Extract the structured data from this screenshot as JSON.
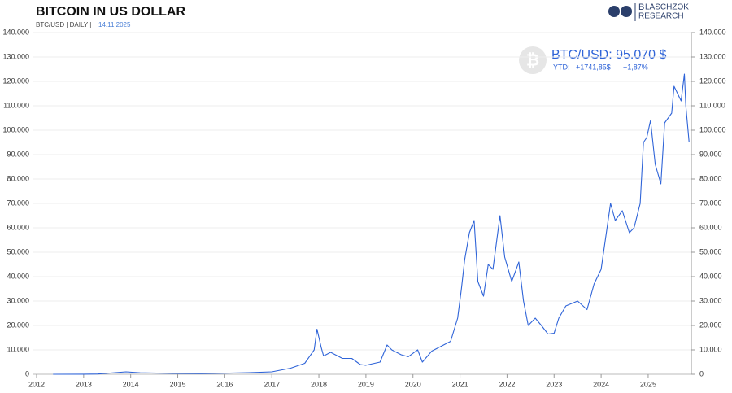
{
  "chart_data": {
    "type": "line",
    "title": "BITCOIN IN US DOLLAR",
    "subtitle": "BTC/USD | DAILY |",
    "date": "14.11.2025",
    "logo": {
      "initial": "B",
      "line1": "LASCHZOK",
      "line2": "RESEARCH"
    },
    "annotation": {
      "price": "BTC/USD: 95.070 $",
      "ytd_label": "YTD:",
      "ytd_abs": "+1741,85$",
      "ytd_pct": "+1,87%"
    },
    "x": [
      2012.35,
      2013.0,
      2013.3,
      2013.9,
      2014.2,
      2014.9,
      2015.5,
      2016.0,
      2016.5,
      2017.0,
      2017.4,
      2017.7,
      2017.9,
      2017.96,
      2018.05,
      2018.1,
      2018.25,
      2018.5,
      2018.7,
      2018.88,
      2019.0,
      2019.3,
      2019.45,
      2019.55,
      2019.75,
      2019.9,
      2020.1,
      2020.2,
      2020.4,
      2020.6,
      2020.8,
      2020.95,
      2021.03,
      2021.1,
      2021.2,
      2021.3,
      2021.38,
      2021.5,
      2021.6,
      2021.7,
      2021.85,
      2021.95,
      2022.1,
      2022.25,
      2022.35,
      2022.45,
      2022.6,
      2022.75,
      2022.87,
      2023.0,
      2023.1,
      2023.25,
      2023.5,
      2023.7,
      2023.85,
      2024.0,
      2024.2,
      2024.3,
      2024.45,
      2024.6,
      2024.7,
      2024.83,
      2024.9,
      2024.97,
      2025.05,
      2025.15,
      2025.27,
      2025.35,
      2025.5,
      2025.55,
      2025.7,
      2025.77,
      2025.8,
      2025.87
    ],
    "series": [
      {
        "name": "BTC/USD",
        "color": "#2f64d8",
        "values": [
          5,
          13,
          100,
          1000,
          600,
          350,
          250,
          430,
          650,
          1000,
          2500,
          4500,
          10000,
          18500,
          11000,
          7500,
          9000,
          6500,
          6500,
          4000,
          3700,
          5000,
          12000,
          10000,
          8000,
          7200,
          10000,
          5000,
          9500,
          11500,
          13500,
          23000,
          35000,
          47000,
          58000,
          63000,
          38000,
          32000,
          45000,
          43000,
          65000,
          48000,
          38000,
          46000,
          30000,
          20000,
          23000,
          19500,
          16500,
          16800,
          23000,
          28000,
          30000,
          26500,
          37000,
          43000,
          70000,
          63000,
          67000,
          58000,
          60000,
          70000,
          95000,
          97000,
          104000,
          86000,
          78000,
          103000,
          107000,
          118000,
          112000,
          123000,
          110000,
          95070
        ]
      }
    ],
    "xlim": [
      2012,
      2025.9
    ],
    "xticks": [
      2012,
      2013,
      2014,
      2015,
      2016,
      2017,
      2018,
      2019,
      2020,
      2021,
      2022,
      2023,
      2024,
      2025
    ],
    "ylim": [
      0,
      140000
    ],
    "yticks": [
      0,
      {
        "value": 10000,
        "label": "10.000"
      },
      {
        "value": 20000,
        "label": "20.000"
      },
      {
        "value": 30000,
        "label": "30.000"
      },
      {
        "value": 40000,
        "label": "40.000"
      },
      {
        "value": 50000,
        "label": "50.000"
      },
      {
        "value": 60000,
        "label": "60.000"
      },
      {
        "value": 70000,
        "label": "70.000"
      },
      {
        "value": 80000,
        "label": "80.000"
      },
      {
        "value": 90000,
        "label": "90.000"
      },
      {
        "value": 100000,
        "label": "100.000"
      },
      {
        "value": 110000,
        "label": "110.000"
      },
      {
        "value": 120000,
        "label": "120.000"
      },
      {
        "value": 130000,
        "label": "130.000"
      },
      {
        "value": 140000,
        "label": "140.000"
      }
    ],
    "y2lim": [
      0,
      140000
    ],
    "y2ticks": [
      0,
      {
        "value": 10000,
        "label": "10.000"
      },
      {
        "value": 20000,
        "label": "20.000"
      },
      {
        "value": 30000,
        "label": "30.000"
      },
      {
        "value": 40000,
        "label": "40.000"
      },
      {
        "value": 50000,
        "label": "50.000"
      },
      {
        "value": 60000,
        "label": "60.000"
      },
      {
        "value": 70000,
        "label": "70.000"
      },
      {
        "value": 80000,
        "label": "80.000"
      },
      {
        "value": 90000,
        "label": "90.000"
      },
      {
        "value": 100000,
        "label": "100.000"
      },
      {
        "value": 110000,
        "label": "110.000"
      },
      {
        "value": 120000,
        "label": "120.000"
      },
      {
        "value": 130000,
        "label": "130.000"
      },
      {
        "value": 140000,
        "label": "140.000"
      }
    ],
    "grid": true
  }
}
